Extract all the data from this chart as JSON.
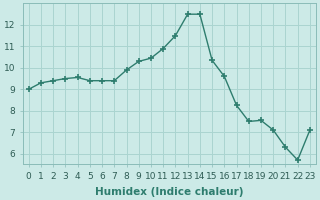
{
  "x": [
    0,
    1,
    2,
    3,
    4,
    5,
    6,
    7,
    8,
    9,
    10,
    11,
    12,
    13,
    14,
    15,
    16,
    17,
    18,
    19,
    20,
    21,
    22,
    23
  ],
  "y": [
    9.0,
    9.3,
    9.4,
    9.5,
    9.55,
    9.4,
    9.4,
    9.4,
    9.9,
    10.3,
    10.45,
    10.9,
    11.5,
    12.5,
    12.5,
    10.35,
    9.6,
    8.25,
    7.5,
    7.55,
    7.1,
    6.3,
    5.7,
    7.1
  ],
  "line_color": "#2e7d6e",
  "marker": "+",
  "marker_size": 4,
  "bg_color": "#cceae7",
  "grid_color": "#aad4d0",
  "xlabel": "Humidex (Indice chaleur)",
  "xlim": [
    -0.5,
    23.5
  ],
  "ylim": [
    5.5,
    13.0
  ],
  "yticks": [
    6,
    7,
    8,
    9,
    10,
    11,
    12
  ],
  "xticks": [
    0,
    1,
    2,
    3,
    4,
    5,
    6,
    7,
    8,
    9,
    10,
    11,
    12,
    13,
    14,
    15,
    16,
    17,
    18,
    19,
    20,
    21,
    22,
    23
  ],
  "tick_label_size": 6.5,
  "xlabel_size": 7.5,
  "line_width": 1.0
}
